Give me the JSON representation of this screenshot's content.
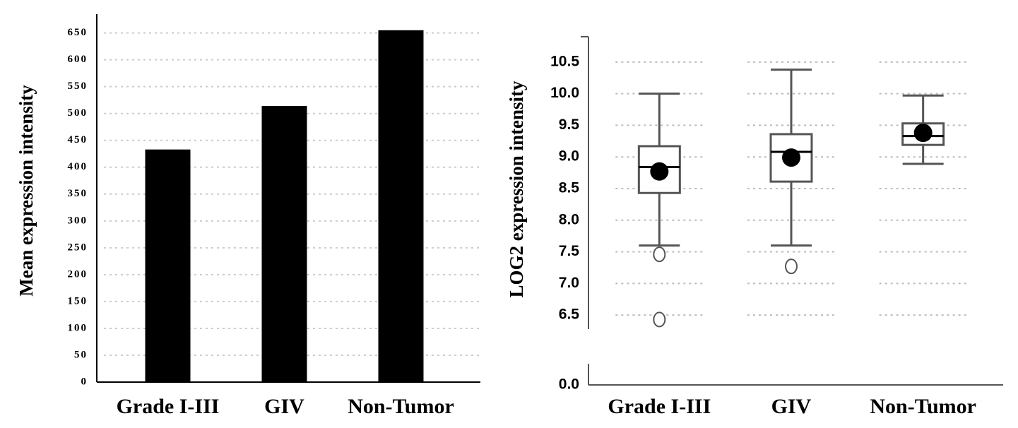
{
  "chart_data": [
    {
      "type": "bar",
      "y_label": "Mean expression intensity",
      "categories": [
        "Grade I-III",
        "GIV",
        "Non-Tumor"
      ],
      "values": [
        433,
        514,
        655
      ],
      "color": "#000000",
      "ylim": [
        0,
        685
      ],
      "yticks": [
        0,
        50,
        100,
        150,
        200,
        250,
        300,
        350,
        400,
        450,
        500,
        550,
        600,
        650
      ],
      "grid": true
    },
    {
      "type": "box",
      "y_label": "LOG2 expression intensity",
      "categories": [
        "Grade I-III",
        "GIV",
        "Non-Tumor"
      ],
      "whisker_low": [
        7.6,
        7.6,
        8.89
      ],
      "q1": [
        8.43,
        8.61,
        9.19
      ],
      "median": [
        8.84,
        9.08,
        9.33
      ],
      "q3": [
        9.17,
        9.36,
        9.53
      ],
      "whisker_high": [
        10.0,
        10.38,
        9.97
      ],
      "mean": [
        8.77,
        8.99,
        9.38
      ],
      "outliers": [
        [
          7.46,
          6.43
        ],
        [
          7.27
        ],
        []
      ],
      "color": "#555555",
      "mean_color": "#000000",
      "ylim": [
        0,
        10.9
      ],
      "y_break": [
        0.2,
        6.2
      ],
      "yticks": [
        {
          "value": 0,
          "label": "0.0"
        },
        6.5,
        {
          "value": 7,
          "label": "7.0"
        },
        7.5,
        {
          "value": 8,
          "label": "8.0"
        },
        8.5,
        {
          "value": 9,
          "label": "9.0"
        },
        9.5,
        {
          "value": 10,
          "label": "10.0"
        },
        10.5
      ],
      "grid": true
    }
  ]
}
